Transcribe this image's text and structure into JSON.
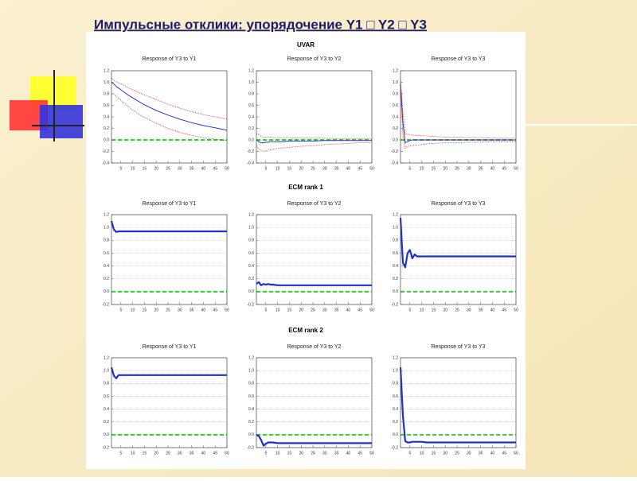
{
  "title": "Импульсные отклики:   упорядочение  Y1 □ Y2 □ Y3",
  "sections": [
    "UVAR",
    "ECM  rank 1",
    "ECM  rank 2"
  ],
  "chart_data": [
    {
      "type": "line",
      "title": "Response of Y3 to Y1",
      "x": [
        1,
        2,
        3,
        4,
        5,
        6,
        7,
        8,
        10,
        12,
        15,
        20,
        25,
        30,
        35,
        40,
        45,
        50
      ],
      "xlim": [
        1,
        50
      ],
      "xticks": [
        5,
        10,
        15,
        20,
        25,
        30,
        35,
        40,
        45,
        50
      ],
      "ylim": [
        -0.4,
        1.2
      ],
      "yticks": [
        -0.4,
        -0.2,
        {
          "value": 0,
          "label": "0.0"
        },
        0.2,
        0.4,
        0.6,
        0.8,
        {
          "value": 1,
          "label": "1.0"
        },
        1.2
      ],
      "grid": false,
      "reference_line": {
        "value": 0,
        "color": "#33cc33"
      },
      "series": [
        {
          "color": "#3333cc",
          "style": "solid",
          "values": [
            1.0,
            0.97,
            0.93,
            0.9,
            0.87,
            0.84,
            0.81,
            0.78,
            0.73,
            0.68,
            0.61,
            0.51,
            0.43,
            0.36,
            0.3,
            0.25,
            0.21,
            0.17
          ]
        },
        {
          "color": "#e03030",
          "style": "dotted",
          "values": [
            1.07,
            1.04,
            1.01,
            0.99,
            0.97,
            0.95,
            0.93,
            0.91,
            0.87,
            0.83,
            0.78,
            0.7,
            0.62,
            0.55,
            0.49,
            0.44,
            0.4,
            0.36
          ]
        },
        {
          "color": "#e03030",
          "style": "dotted",
          "values": [
            0.8,
            0.8,
            0.76,
            0.72,
            0.69,
            0.65,
            0.62,
            0.58,
            0.52,
            0.46,
            0.39,
            0.29,
            0.2,
            0.13,
            0.08,
            0.04,
            0.01,
            -0.01
          ]
        }
      ]
    },
    {
      "type": "line",
      "title": "Response of Y3 to Y2",
      "x": [
        1,
        2,
        3,
        4,
        5,
        6,
        7,
        8,
        10,
        12,
        15,
        20,
        25,
        30,
        35,
        40,
        45,
        50
      ],
      "xlim": [
        1,
        50
      ],
      "xticks": [
        5,
        10,
        15,
        20,
        25,
        30,
        35,
        40,
        45,
        50
      ],
      "ylim": [
        -0.4,
        1.2
      ],
      "yticks": [
        -0.4,
        -0.2,
        {
          "value": 0,
          "label": "0.0"
        },
        0.2,
        0.4,
        0.6,
        0.8,
        {
          "value": 1,
          "label": "1.0"
        },
        1.2
      ],
      "grid": false,
      "reference_line": {
        "value": 0,
        "color": "#33cc33"
      },
      "series": [
        {
          "color": "#3333cc",
          "style": "solid",
          "values": [
            0.0,
            -0.03,
            -0.05,
            -0.05,
            -0.04,
            -0.04,
            -0.03,
            -0.03,
            -0.03,
            -0.03,
            -0.02,
            -0.02,
            -0.02,
            -0.01,
            -0.01,
            -0.01,
            -0.01,
            -0.01
          ]
        },
        {
          "color": "#e03030",
          "style": "dotted",
          "values": [
            0.1,
            0.1,
            0.06,
            0.05,
            0.05,
            0.05,
            0.05,
            0.04,
            0.04,
            0.04,
            0.04,
            0.03,
            0.03,
            0.03,
            0.02,
            0.02,
            0.02,
            0.02
          ]
        },
        {
          "color": "#e03030",
          "style": "dotted",
          "values": [
            -0.1,
            -0.15,
            -0.18,
            -0.2,
            -0.19,
            -0.18,
            -0.17,
            -0.16,
            -0.15,
            -0.14,
            -0.13,
            -0.11,
            -0.1,
            -0.08,
            -0.07,
            -0.06,
            -0.05,
            -0.05
          ]
        }
      ]
    },
    {
      "type": "line",
      "title": "Response of Y3 to Y3",
      "x": [
        1,
        2,
        3,
        4,
        5,
        6,
        7,
        8,
        10,
        12,
        15,
        20,
        25,
        30,
        35,
        40,
        45,
        50
      ],
      "xlim": [
        1,
        50
      ],
      "xticks": [
        5,
        10,
        15,
        20,
        25,
        30,
        35,
        40,
        45,
        50
      ],
      "ylim": [
        -0.4,
        1.2
      ],
      "yticks": [
        -0.4,
        -0.2,
        {
          "value": 0,
          "label": "0.0"
        },
        0.2,
        0.4,
        0.6,
        0.8,
        {
          "value": 1,
          "label": "1.0"
        },
        1.2
      ],
      "grid": false,
      "reference_line": {
        "value": 0,
        "color": "#33cc33"
      },
      "series": [
        {
          "color": "#3333cc",
          "style": "solid",
          "values": [
            0.98,
            0.3,
            -0.05,
            -0.03,
            -0.01,
            0.0,
            0.0,
            0.0,
            0.0,
            0.0,
            0.0,
            0.0,
            0.0,
            0.0,
            0.0,
            0.0,
            0.0,
            0.0
          ]
        },
        {
          "color": "#e03030",
          "style": "dotted",
          "values": [
            1.05,
            0.5,
            0.1,
            0.1,
            0.09,
            0.08,
            0.08,
            0.08,
            0.07,
            0.07,
            0.06,
            0.05,
            0.05,
            0.04,
            0.04,
            0.03,
            0.03,
            0.03
          ]
        },
        {
          "color": "#e03030",
          "style": "dotted",
          "values": [
            0.85,
            0.1,
            -0.15,
            -0.12,
            -0.1,
            -0.1,
            -0.09,
            -0.09,
            -0.08,
            -0.07,
            -0.06,
            -0.05,
            -0.05,
            -0.04,
            -0.04,
            -0.03,
            -0.03,
            -0.03
          ]
        }
      ]
    },
    {
      "type": "line",
      "title": "Response of Y3 to Y1",
      "x": [
        1,
        2,
        3,
        4,
        5,
        6,
        7,
        8,
        10,
        12,
        15,
        20,
        25,
        30,
        35,
        40,
        45,
        50
      ],
      "xlim": [
        1,
        50
      ],
      "xticks": [
        5,
        10,
        15,
        20,
        25,
        30,
        35,
        40,
        45,
        50
      ],
      "ylim": [
        -0.2,
        1.2
      ],
      "yticks": [
        -0.2,
        {
          "value": 0,
          "label": "0.0"
        },
        0.2,
        0.4,
        0.6,
        0.8,
        {
          "value": 1,
          "label": "1.0"
        },
        1.2
      ],
      "grid": true,
      "reference_line": {
        "value": 0,
        "color": "#33cc33"
      },
      "series": [
        {
          "color": "#1f2fd0",
          "style": "solid",
          "values": [
            1.1,
            0.97,
            0.93,
            0.94,
            0.94,
            0.94,
            0.94,
            0.94,
            0.94,
            0.94,
            0.94,
            0.94,
            0.94,
            0.94,
            0.94,
            0.94,
            0.94,
            0.94
          ]
        }
      ]
    },
    {
      "type": "line",
      "title": "Response of Y3 to Y2",
      "x": [
        1,
        2,
        3,
        4,
        5,
        6,
        7,
        8,
        10,
        12,
        15,
        20,
        25,
        30,
        35,
        40,
        45,
        50
      ],
      "xlim": [
        1,
        50
      ],
      "xticks": [
        5,
        10,
        15,
        20,
        25,
        30,
        35,
        40,
        45,
        50
      ],
      "ylim": [
        -0.2,
        1.2
      ],
      "yticks": [
        -0.2,
        {
          "value": 0,
          "label": "0.0"
        },
        0.2,
        0.4,
        0.6,
        0.8,
        {
          "value": 1,
          "label": "1.0"
        },
        1.2
      ],
      "grid": true,
      "reference_line": {
        "value": 0,
        "color": "#33cc33"
      },
      "series": [
        {
          "color": "#1f2fd0",
          "style": "solid",
          "values": [
            0.12,
            0.15,
            0.1,
            0.12,
            0.11,
            0.12,
            0.11,
            0.11,
            0.1,
            0.1,
            0.1,
            0.1,
            0.1,
            0.1,
            0.1,
            0.1,
            0.1,
            0.1
          ]
        }
      ]
    },
    {
      "type": "line",
      "title": "Response of Y3 to Y3",
      "x": [
        1,
        2,
        3,
        4,
        5,
        6,
        7,
        8,
        10,
        12,
        15,
        20,
        25,
        30,
        35,
        40,
        45,
        50
      ],
      "xlim": [
        1,
        50
      ],
      "xticks": [
        5,
        10,
        15,
        20,
        25,
        30,
        35,
        40,
        45,
        50
      ],
      "ylim": [
        -0.2,
        1.2
      ],
      "yticks": [
        -0.2,
        {
          "value": 0,
          "label": "0.0"
        },
        0.2,
        0.4,
        0.6,
        0.8,
        {
          "value": 1,
          "label": "1.0"
        },
        1.2
      ],
      "grid": true,
      "reference_line": {
        "value": 0,
        "color": "#33cc33"
      },
      "series": [
        {
          "color": "#1f2fd0",
          "style": "solid",
          "values": [
            1.15,
            0.45,
            0.38,
            0.6,
            0.65,
            0.52,
            0.58,
            0.55,
            0.55,
            0.55,
            0.55,
            0.55,
            0.55,
            0.55,
            0.55,
            0.55,
            0.55,
            0.55
          ]
        }
      ]
    },
    {
      "type": "line",
      "title": "Response of Y3 to Y1",
      "x": [
        1,
        2,
        3,
        4,
        5,
        6,
        7,
        8,
        10,
        12,
        15,
        20,
        25,
        30,
        35,
        40,
        45,
        50
      ],
      "xlim": [
        1,
        50
      ],
      "xticks": [
        5,
        10,
        15,
        20,
        25,
        30,
        35,
        40,
        45,
        50
      ],
      "ylim": [
        -0.2,
        1.2
      ],
      "yticks": [
        -0.2,
        {
          "value": 0,
          "label": "0.0"
        },
        0.2,
        0.4,
        0.6,
        0.8,
        {
          "value": 1,
          "label": "1.0"
        },
        1.2
      ],
      "grid": true,
      "reference_line": {
        "value": 0,
        "color": "#33cc33"
      },
      "series": [
        {
          "color": "#1f2fd0",
          "style": "solid",
          "values": [
            1.05,
            0.92,
            0.88,
            0.93,
            0.93,
            0.93,
            0.93,
            0.93,
            0.93,
            0.93,
            0.93,
            0.93,
            0.93,
            0.93,
            0.93,
            0.93,
            0.93,
            0.93
          ]
        }
      ]
    },
    {
      "type": "line",
      "title": "Response of Y3 to Y2",
      "x": [
        1,
        2,
        3,
        4,
        5,
        6,
        7,
        8,
        10,
        12,
        15,
        20,
        25,
        30,
        35,
        40,
        45,
        50
      ],
      "xlim": [
        1,
        50
      ],
      "xticks": [
        5,
        10,
        15,
        20,
        25,
        30,
        35,
        40,
        45,
        50
      ],
      "ylim": [
        -0.2,
        1.2
      ],
      "yticks": [
        -0.2,
        {
          "value": 0,
          "label": "0.0"
        },
        0.2,
        0.4,
        0.6,
        0.8,
        {
          "value": 1,
          "label": "1.0"
        },
        1.2
      ],
      "grid": true,
      "reference_line": {
        "value": 0,
        "color": "#33cc33"
      },
      "series": [
        {
          "color": "#1f2fd0",
          "style": "solid",
          "values": [
            0.0,
            -0.02,
            -0.08,
            -0.17,
            -0.14,
            -0.12,
            -0.12,
            -0.12,
            -0.13,
            -0.13,
            -0.13,
            -0.13,
            -0.13,
            -0.13,
            -0.13,
            -0.13,
            -0.13,
            -0.13
          ]
        }
      ]
    },
    {
      "type": "line",
      "title": "Response of Y3 to Y3",
      "x": [
        1,
        2,
        3,
        4,
        5,
        6,
        7,
        8,
        10,
        12,
        15,
        20,
        25,
        30,
        35,
        40,
        45,
        50
      ],
      "xlim": [
        1,
        50
      ],
      "xticks": [
        5,
        10,
        15,
        20,
        25,
        30,
        35,
        40,
        45,
        50
      ],
      "ylim": [
        -0.2,
        1.2
      ],
      "yticks": [
        -0.2,
        {
          "value": 0,
          "label": "0.0"
        },
        0.2,
        0.4,
        0.6,
        0.8,
        {
          "value": 1,
          "label": "1.0"
        },
        1.2
      ],
      "grid": true,
      "reference_line": {
        "value": 0,
        "color": "#33cc33"
      },
      "series": [
        {
          "color": "#1f2fd0",
          "style": "solid",
          "values": [
            1.05,
            0.3,
            -0.1,
            -0.12,
            -0.12,
            -0.11,
            -0.11,
            -0.11,
            -0.11,
            -0.12,
            -0.12,
            -0.12,
            -0.12,
            -0.12,
            -0.12,
            -0.12,
            -0.12,
            -0.12
          ]
        }
      ]
    }
  ]
}
